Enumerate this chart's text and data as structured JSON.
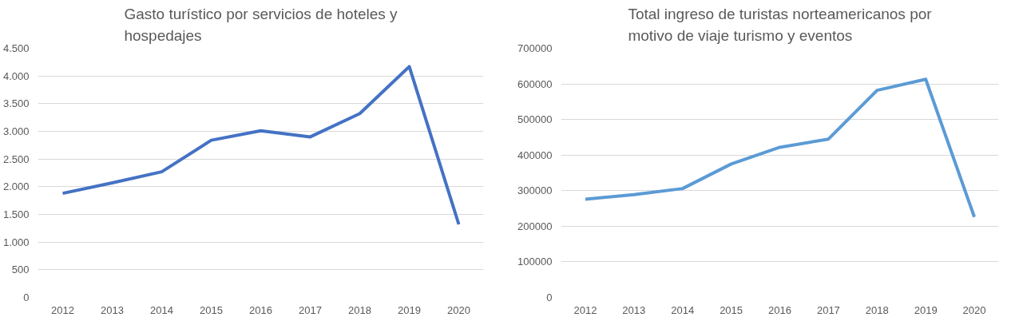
{
  "chart_data": [
    {
      "type": "line",
      "title": "Gasto turístico por servicios de hoteles y hospedajes",
      "categories": [
        "2012",
        "2013",
        "2014",
        "2015",
        "2016",
        "2017",
        "2018",
        "2019",
        "2020"
      ],
      "series": [
        {
          "color": "#4472c4",
          "values": [
            1880,
            2070,
            2270,
            2840,
            3010,
            2900,
            3320,
            4170,
            1320
          ]
        }
      ],
      "ylim": [
        0,
        4500
      ],
      "yticks": [
        0,
        500,
        {
          "value": 1000,
          "label": "1.000"
        },
        {
          "value": 1500,
          "label": "1.500"
        },
        {
          "value": 2000,
          "label": "2.000"
        },
        {
          "value": 2500,
          "label": "2.500"
        },
        {
          "value": 3000,
          "label": "3.000"
        },
        {
          "value": 3500,
          "label": "3.500"
        },
        {
          "value": 4000,
          "label": "4.000"
        },
        {
          "value": 4500,
          "label": "4.500"
        }
      ],
      "grid": "y",
      "marker": "none",
      "line_style": "solid"
    },
    {
      "type": "line",
      "title": "Total ingreso de turistas norteamericanos por motivo de viaje turismo y eventos",
      "categories": [
        "2012",
        "2013",
        "2014",
        "2015",
        "2016",
        "2017",
        "2018",
        "2019",
        "2020"
      ],
      "series": [
        {
          "color": "#5b9bd5",
          "values": [
            276000,
            289000,
            306000,
            375000,
            422000,
            445000,
            582000,
            613000,
            226000
          ]
        }
      ],
      "ylim": [
        0,
        700000
      ],
      "yticks": [
        0,
        100000,
        200000,
        300000,
        400000,
        500000,
        600000,
        700000
      ],
      "grid": "y",
      "marker": "none",
      "line_style": "solid"
    }
  ]
}
